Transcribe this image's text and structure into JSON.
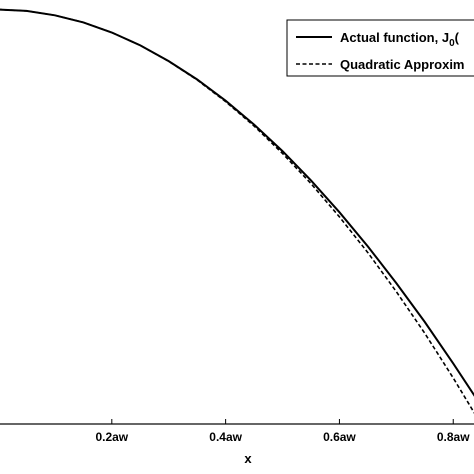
{
  "chart_data": {
    "type": "line",
    "title": "",
    "xlabel": "x",
    "ylabel": "",
    "x_unit_suffix": "aw",
    "xticks": [
      0.2,
      0.4,
      0.6,
      0.8
    ],
    "xtick_labels": [
      "0.2aw",
      "0.4aw",
      "0.6aw",
      "0.8aw"
    ],
    "xlim": [
      0.0,
      0.84
    ],
    "ylim": [
      0.82,
      1.005
    ],
    "grid": false,
    "legend_position": "top-right",
    "series": [
      {
        "name": "Actual function, J0(",
        "style": "solid",
        "color": "#000000",
        "x": [
          0.0,
          0.05,
          0.1,
          0.15,
          0.2,
          0.25,
          0.3,
          0.35,
          0.4,
          0.45,
          0.5,
          0.55,
          0.6,
          0.65,
          0.7,
          0.75,
          0.8,
          0.84
        ],
        "y": [
          1.0,
          0.9994,
          0.9975,
          0.9944,
          0.99,
          0.9844,
          0.9776,
          0.9696,
          0.9604,
          0.95,
          0.9385,
          0.9258,
          0.912,
          0.8971,
          0.8812,
          0.8643,
          0.8463,
          0.8313
        ]
      },
      {
        "name": "Quadratic Approxim",
        "style": "dashed",
        "color": "#000000",
        "x": [
          0.0,
          0.05,
          0.1,
          0.15,
          0.2,
          0.25,
          0.3,
          0.35,
          0.4,
          0.45,
          0.5,
          0.55,
          0.6,
          0.65,
          0.7,
          0.75,
          0.8,
          0.84
        ],
        "y": [
          1.0,
          0.9994,
          0.9975,
          0.9944,
          0.99,
          0.9844,
          0.9775,
          0.9694,
          0.96,
          0.9494,
          0.9375,
          0.9244,
          0.91,
          0.8944,
          0.8775,
          0.8594,
          0.84,
          0.8236
        ]
      }
    ],
    "legend": {
      "entry1_main": "Actual function, J",
      "entry1_sub": "0",
      "entry1_tail": "(",
      "entry2": "Quadratic Approxim"
    }
  }
}
